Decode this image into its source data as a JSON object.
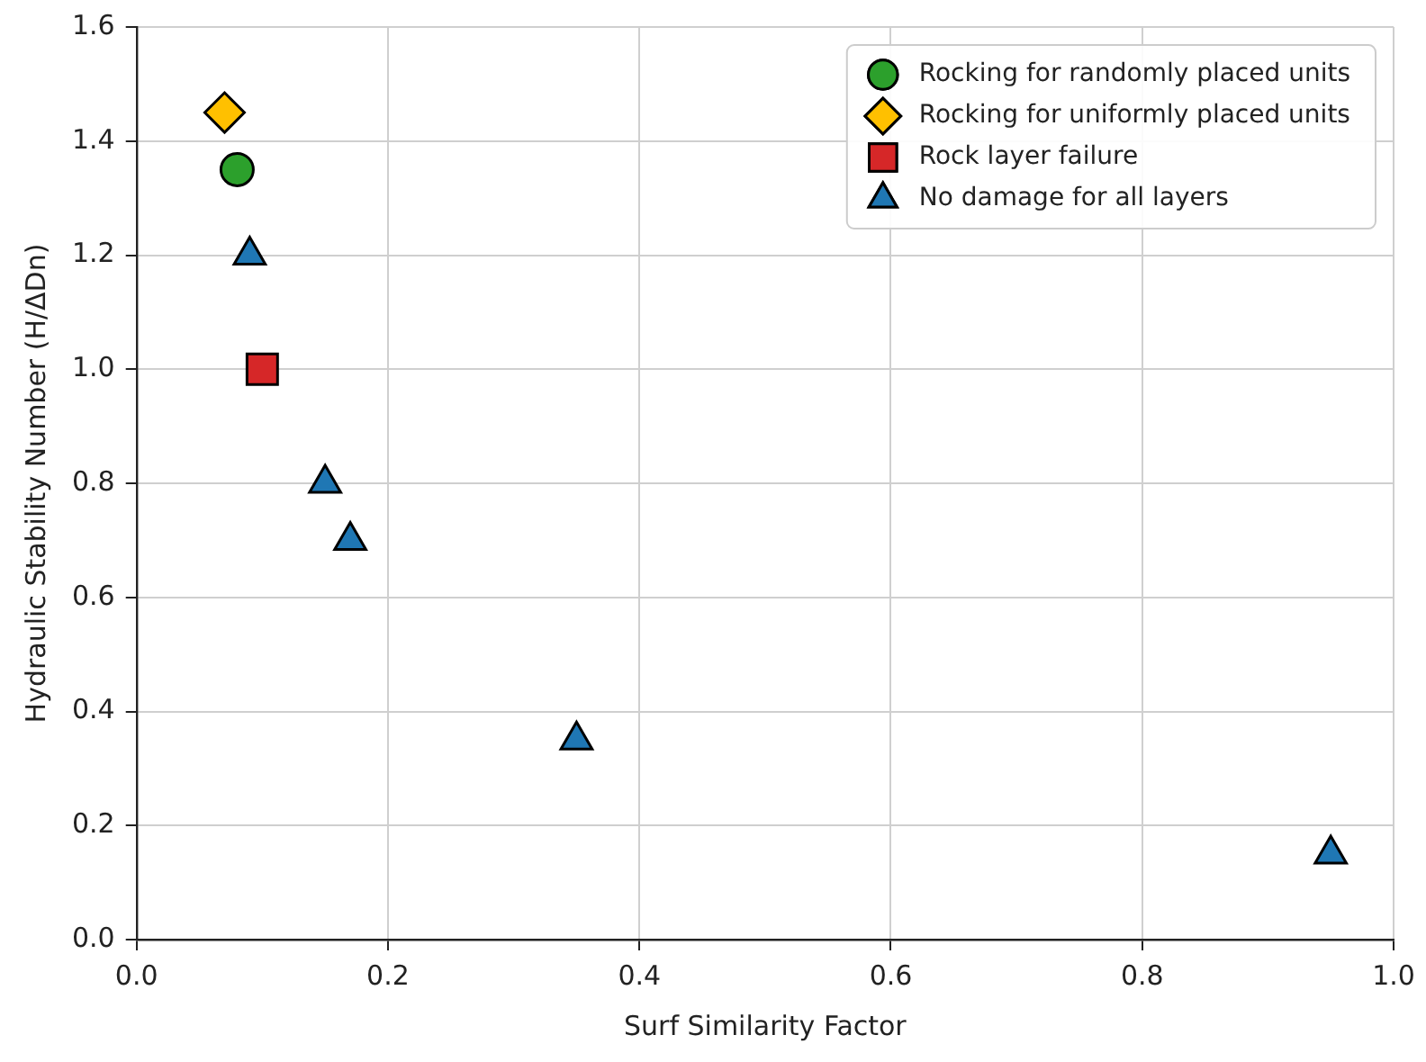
{
  "chart_data": {
    "type": "scatter",
    "xlabel": "Surf Similarity Factor",
    "ylabel": "Hydraulic Stability Number (H/ΔDn)",
    "xlim": [
      0,
      1
    ],
    "ylim": [
      0,
      1.6
    ],
    "xticks": [
      {
        "value": 0,
        "label": "0.0"
      },
      {
        "value": 0.2,
        "label": "0.2"
      },
      {
        "value": 0.4,
        "label": "0.4"
      },
      {
        "value": 0.6,
        "label": "0.6"
      },
      {
        "value": 0.8,
        "label": "0.8"
      },
      {
        "value": 1,
        "label": "1.0"
      }
    ],
    "yticks": [
      {
        "value": 0,
        "label": "0.0"
      },
      {
        "value": 0.2,
        "label": "0.2"
      },
      {
        "value": 0.4,
        "label": "0.4"
      },
      {
        "value": 0.6,
        "label": "0.6"
      },
      {
        "value": 0.8,
        "label": "0.8"
      },
      {
        "value": 1,
        "label": "1.0"
      },
      {
        "value": 1.2,
        "label": "1.2"
      },
      {
        "value": 1.4,
        "label": "1.4"
      },
      {
        "value": 1.6,
        "label": "1.6"
      }
    ],
    "grid": true,
    "legend": "top right",
    "series": [
      {
        "name": "Rocking for randomly placed units",
        "color": "#2ca02c",
        "marker": "circle",
        "x": [
          0.08
        ],
        "values": [
          1.35
        ]
      },
      {
        "name": "Rocking for uniformly placed units",
        "color": "#ffc000",
        "marker": "diamond",
        "x": [
          0.07
        ],
        "values": [
          1.45
        ]
      },
      {
        "name": "Rock layer failure",
        "color": "#d62728",
        "marker": "square",
        "x": [
          0.1
        ],
        "values": [
          1.0
        ]
      },
      {
        "name": "No damage for all layers",
        "color": "#1f77b4",
        "marker": "triangle",
        "x": [
          0.09,
          0.15,
          0.17,
          0.35,
          0.95
        ],
        "values": [
          1.2,
          0.8,
          0.7,
          0.35,
          0.15
        ]
      }
    ]
  }
}
